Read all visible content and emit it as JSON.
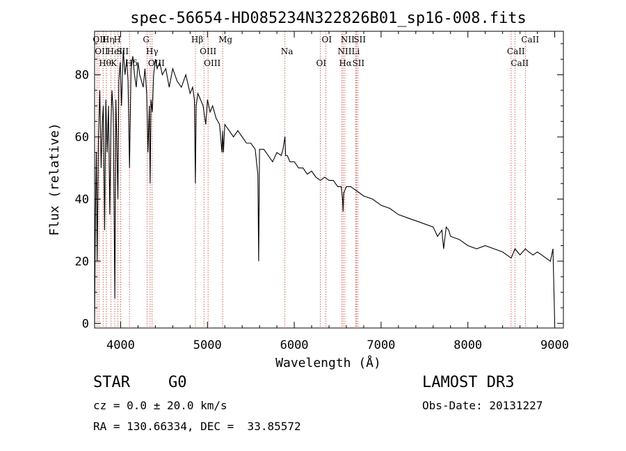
{
  "chart_data": {
    "type": "line",
    "title": "spec-56654-HD085234N322826B01_sp16-008.fits",
    "xlabel": "Wavelength (Å)",
    "ylabel": "Flux (relative)",
    "xlim": [
      3700,
      9100
    ],
    "ylim": [
      -1.5,
      94
    ],
    "x_ticks": [
      4000,
      5000,
      6000,
      7000,
      8000,
      9000
    ],
    "y_ticks": [
      0,
      20,
      40,
      60,
      80
    ],
    "grid": false,
    "series": [
      {
        "name": "flux",
        "x": [
          3700,
          3710,
          3720,
          3730,
          3745,
          3760,
          3775,
          3790,
          3800,
          3815,
          3830,
          3845,
          3860,
          3875,
          3889,
          3900,
          3915,
          3933,
          3945,
          3955,
          3968,
          3980,
          3995,
          4010,
          4030,
          4050,
          4070,
          4085,
          4102,
          4120,
          4140,
          4160,
          4180,
          4200,
          4220,
          4240,
          4260,
          4280,
          4300,
          4315,
          4330,
          4340,
          4350,
          4365,
          4380,
          4400,
          4420,
          4450,
          4480,
          4520,
          4560,
          4600,
          4650,
          4700,
          4750,
          4800,
          4830,
          4850,
          4861,
          4870,
          4890,
          4920,
          4950,
          4980,
          5000,
          5030,
          5060,
          5100,
          5140,
          5167,
          5175,
          5184,
          5200,
          5250,
          5300,
          5350,
          5400,
          5450,
          5500,
          5550,
          5580,
          5590,
          5600,
          5650,
          5700,
          5750,
          5800,
          5850,
          5870,
          5893,
          5900,
          5920,
          5950,
          6000,
          6050,
          6100,
          6150,
          6200,
          6250,
          6300,
          6350,
          6400,
          6450,
          6500,
          6540,
          6556,
          6563,
          6570,
          6600,
          6650,
          6700,
          6750,
          6800,
          6900,
          7000,
          7100,
          7200,
          7300,
          7400,
          7500,
          7600,
          7650,
          7700,
          7720,
          7750,
          7780,
          7800,
          7900,
          8000,
          8100,
          8200,
          8300,
          8400,
          8498,
          8542,
          8600,
          8662,
          8700,
          8750,
          8800,
          8850,
          8900,
          8950,
          8980,
          9000
        ],
        "y": [
          0,
          35,
          55,
          20,
          60,
          75,
          50,
          65,
          70,
          30,
          72,
          55,
          70,
          35,
          65,
          75,
          68,
          8,
          72,
          60,
          40,
          78,
          84,
          70,
          88,
          80,
          85,
          78,
          50,
          82,
          86,
          80,
          76,
          84,
          80,
          78,
          76,
          82,
          74,
          55,
          70,
          45,
          72,
          68,
          80,
          85,
          82,
          84,
          80,
          82,
          76,
          82,
          78,
          76,
          80,
          74,
          76,
          72,
          45,
          70,
          74,
          72,
          70,
          64,
          72,
          68,
          70,
          66,
          64,
          55,
          62,
          55,
          64,
          62,
          60,
          62,
          60,
          58,
          58,
          56,
          48,
          20,
          56,
          56,
          54,
          52,
          55,
          54,
          56,
          60,
          54,
          54,
          52,
          52,
          50,
          50,
          48,
          49,
          47,
          46,
          47,
          46,
          46,
          44,
          44,
          40,
          36,
          42,
          44,
          44,
          43,
          42,
          41,
          40,
          38,
          37,
          35,
          34,
          33,
          32,
          31,
          28,
          30,
          24,
          31,
          30,
          28,
          27,
          25,
          24,
          25,
          24,
          23,
          21,
          24,
          22,
          24,
          23,
          22,
          23,
          22,
          21,
          20,
          24,
          0
        ]
      }
    ],
    "lines_top": [
      {
        "w": 3727,
        "label": "OII"
      },
      {
        "w": 3750,
        "label": "OII"
      },
      {
        "w": 3798,
        "label": "Hθ"
      },
      {
        "w": 3835,
        "label": "Hη"
      },
      {
        "w": 3889,
        "label": "HeI"
      },
      {
        "w": 3933,
        "label": "K"
      },
      {
        "w": 3968,
        "label": "H"
      },
      {
        "w": 4000,
        "label": "SII"
      },
      {
        "w": 4102,
        "label": "Hδ"
      },
      {
        "w": 4304,
        "label": "G"
      },
      {
        "w": 4340,
        "label": "Hγ"
      },
      {
        "w": 4363,
        "label": "OIII"
      },
      {
        "w": 4861,
        "label": "Hβ"
      },
      {
        "w": 4959,
        "label": "OIII"
      },
      {
        "w": 5007,
        "label": "OIII"
      },
      {
        "w": 5175,
        "label": "Mg"
      },
      {
        "w": 5893,
        "label": "Na"
      },
      {
        "w": 6300,
        "label": "OI"
      },
      {
        "w": 6364,
        "label": "OI"
      },
      {
        "w": 6548,
        "label": "NII"
      },
      {
        "w": 6563,
        "label": "Hα"
      },
      {
        "w": 6583,
        "label": "NII"
      },
      {
        "w": 6708,
        "label": "Li"
      },
      {
        "w": 6716,
        "label": "SII"
      },
      {
        "w": 6731,
        "label": "SII"
      },
      {
        "w": 8498,
        "label": "CaII"
      },
      {
        "w": 8542,
        "label": "CaII"
      },
      {
        "w": 8662,
        "label": "CaII"
      }
    ]
  },
  "info": {
    "object_class": "STAR",
    "subclass": "G0",
    "survey": "LAMOST DR3",
    "redshift": "cz = 0.0 ± 20.0 km/s",
    "obs_date": "Obs-Date: 20131227",
    "coordinates": "RA = 130.66334, DEC =  33.85572"
  }
}
